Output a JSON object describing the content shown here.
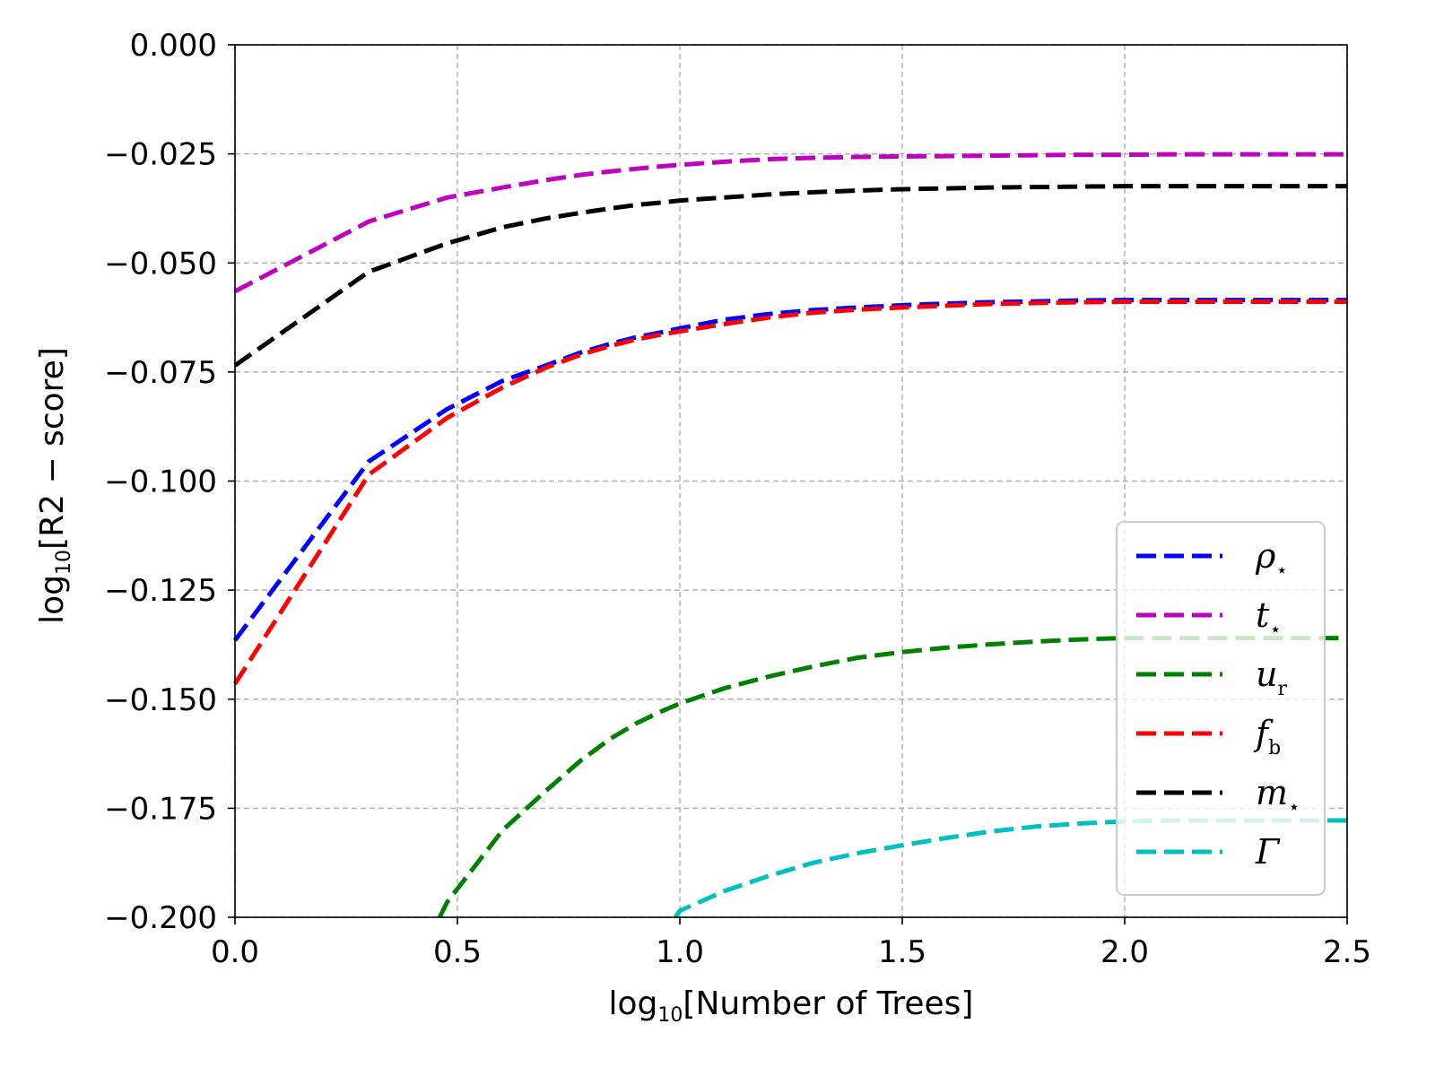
{
  "chart_data": {
    "type": "line",
    "xlabel": {
      "prefix": "log",
      "sub": "10",
      "rest": "[Number of Trees]"
    },
    "ylabel": {
      "prefix": "log",
      "sub": "10",
      "rest": "[R2 − score]"
    },
    "xlim": [
      0.0,
      2.5
    ],
    "ylim": [
      -0.2,
      0.0
    ],
    "xticks": [
      0.0,
      0.5,
      1.0,
      1.5,
      2.0,
      2.5
    ],
    "xtick_labels": [
      "0.0",
      "0.5",
      "1.0",
      "1.5",
      "2.0",
      "2.5"
    ],
    "yticks": [
      0.0,
      -0.025,
      -0.05,
      -0.075,
      -0.1,
      -0.125,
      -0.15,
      -0.175,
      -0.2
    ],
    "ytick_labels": [
      "0.000",
      "−0.025",
      "−0.050",
      "−0.075",
      "−0.100",
      "−0.125",
      "−0.150",
      "−0.175",
      "−0.200"
    ],
    "grid": true,
    "legend_position": "lower-right",
    "series": [
      {
        "name": "ρ",
        "sub": "⋆",
        "color": "#0000ff",
        "x": [
          0.0,
          0.301,
          0.477,
          0.602,
          0.699,
          0.778,
          0.845,
          0.903,
          0.954,
          1.0,
          1.1,
          1.2,
          1.3,
          1.4,
          1.5,
          1.6,
          1.7,
          1.8,
          1.9,
          2.0,
          2.1,
          2.2,
          2.3,
          2.4,
          2.5
        ],
        "y": [
          -0.1365,
          -0.0955,
          -0.0835,
          -0.077,
          -0.0735,
          -0.0705,
          -0.0685,
          -0.067,
          -0.066,
          -0.065,
          -0.063,
          -0.0617,
          -0.0608,
          -0.0602,
          -0.0597,
          -0.0593,
          -0.059,
          -0.0588,
          -0.0586,
          -0.0585,
          -0.0585,
          -0.0585,
          -0.0585,
          -0.0585,
          -0.0585
        ]
      },
      {
        "name": "t",
        "sub": "⋆",
        "color": "#bf00bf",
        "x": [
          0.0,
          0.301,
          0.477,
          0.602,
          0.699,
          0.778,
          0.845,
          0.903,
          0.954,
          1.0,
          1.1,
          1.2,
          1.3,
          1.4,
          1.5,
          1.6,
          1.7,
          1.8,
          1.9,
          2.0,
          2.1,
          2.2,
          2.3,
          2.4,
          2.5
        ],
        "y": [
          -0.0565,
          -0.0405,
          -0.035,
          -0.0327,
          -0.031,
          -0.0298,
          -0.029,
          -0.0284,
          -0.0279,
          -0.0275,
          -0.0268,
          -0.0262,
          -0.0259,
          -0.0257,
          -0.0256,
          -0.0255,
          -0.0254,
          -0.0253,
          -0.0252,
          -0.0252,
          -0.0251,
          -0.0251,
          -0.0251,
          -0.0251,
          -0.0251
        ]
      },
      {
        "name": "u",
        "sub": "r",
        "color": "#008000",
        "x": [
          0.46,
          0.477,
          0.602,
          0.699,
          0.778,
          0.845,
          0.903,
          0.954,
          1.0,
          1.1,
          1.2,
          1.3,
          1.4,
          1.5,
          1.6,
          1.7,
          1.8,
          1.9,
          2.0,
          2.1,
          2.2,
          2.3,
          2.4,
          2.5
        ],
        "y": [
          -0.2,
          -0.1965,
          -0.18,
          -0.171,
          -0.164,
          -0.159,
          -0.1555,
          -0.153,
          -0.151,
          -0.1475,
          -0.1448,
          -0.1425,
          -0.1405,
          -0.1392,
          -0.1382,
          -0.1374,
          -0.1368,
          -0.1363,
          -0.136,
          -0.136,
          -0.136,
          -0.136,
          -0.136,
          -0.136
        ]
      },
      {
        "name": "f",
        "sub": "b",
        "color": "#ff0000",
        "x": [
          0.0,
          0.301,
          0.477,
          0.602,
          0.699,
          0.778,
          0.845,
          0.903,
          0.954,
          1.0,
          1.1,
          1.2,
          1.3,
          1.4,
          1.5,
          1.6,
          1.7,
          1.8,
          1.9,
          2.0,
          2.1,
          2.2,
          2.3,
          2.4,
          2.5
        ],
        "y": [
          -0.1465,
          -0.0985,
          -0.0855,
          -0.0785,
          -0.074,
          -0.071,
          -0.069,
          -0.0675,
          -0.0665,
          -0.0657,
          -0.064,
          -0.0625,
          -0.0614,
          -0.0607,
          -0.0602,
          -0.0598,
          -0.0594,
          -0.0592,
          -0.059,
          -0.0589,
          -0.0589,
          -0.0589,
          -0.0589,
          -0.0589,
          -0.0589
        ]
      },
      {
        "name": "m",
        "sub": "⋆",
        "color": "#000000",
        "x": [
          0.0,
          0.301,
          0.477,
          0.602,
          0.699,
          0.778,
          0.845,
          0.903,
          0.954,
          1.0,
          1.1,
          1.2,
          1.3,
          1.4,
          1.5,
          1.6,
          1.7,
          1.8,
          1.9,
          2.0,
          2.1,
          2.2,
          2.3,
          2.4,
          2.5
        ],
        "y": [
          -0.0735,
          -0.052,
          -0.0455,
          -0.0418,
          -0.0398,
          -0.0385,
          -0.0375,
          -0.0367,
          -0.0362,
          -0.0357,
          -0.035,
          -0.0343,
          -0.0338,
          -0.0334,
          -0.0331,
          -0.0329,
          -0.0327,
          -0.0326,
          -0.0325,
          -0.0324,
          -0.0324,
          -0.0324,
          -0.0324,
          -0.0324,
          -0.0324
        ]
      },
      {
        "name": "Γ",
        "sub": "",
        "color": "#00bfbf",
        "x": [
          0.99,
          1.0,
          1.1,
          1.2,
          1.3,
          1.4,
          1.5,
          1.6,
          1.7,
          1.8,
          1.9,
          2.0,
          2.1,
          2.2,
          2.3,
          2.4,
          2.5
        ],
        "y": [
          -0.2,
          -0.1985,
          -0.194,
          -0.1905,
          -0.1875,
          -0.1853,
          -0.1835,
          -0.1818,
          -0.1803,
          -0.1792,
          -0.1785,
          -0.178,
          -0.1778,
          -0.1778,
          -0.1778,
          -0.1778,
          -0.1778
        ]
      }
    ]
  }
}
